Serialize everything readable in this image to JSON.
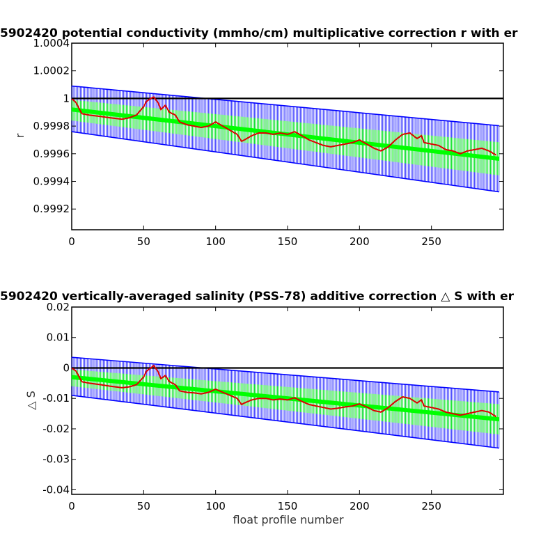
{
  "chart_data": [
    {
      "type": "line",
      "title": "5902420 potential conductivity (mmho/cm) multiplicative correction r with er",
      "xlabel": "",
      "ylabel": "r",
      "xlim": [
        0,
        300
      ],
      "ylim": [
        0.99905,
        1.0004
      ],
      "xticks": [
        0,
        50,
        100,
        150,
        200,
        250
      ],
      "yticks": [
        0.9992,
        0.9994,
        0.9996,
        0.9998,
        1,
        1.0002,
        1.0004
      ],
      "ytick_labels": [
        "0.9992",
        "0.9994",
        "0.9996",
        "0.9998",
        "1",
        "1.0002",
        "1.0004"
      ],
      "reference_line": 1,
      "colors": {
        "reference": "#000000",
        "blue_band": "#0000ff",
        "green_band": "#00ff00",
        "correction": "#dd0000"
      },
      "series": [
        {
          "role": "blue-error-band",
          "x": [
            0,
            300
          ],
          "upper": [
            1.00009,
            0.9998
          ],
          "lower": [
            0.99976,
            0.99932
          ]
        },
        {
          "role": "green-error-band",
          "x": [
            0,
            300
          ],
          "upper": [
            0.99999,
            0.99968
          ],
          "lower": [
            0.99984,
            0.99944
          ]
        },
        {
          "role": "green-fit",
          "x": [
            0,
            300
          ],
          "y": [
            0.99992,
            0.99956
          ]
        },
        {
          "role": "red-correction",
          "x": [
            0,
            3,
            7,
            12,
            20,
            27,
            35,
            40,
            45,
            50,
            52,
            55,
            57,
            60,
            62,
            65,
            68,
            72,
            75,
            80,
            85,
            90,
            95,
            100,
            105,
            110,
            115,
            118,
            120,
            125,
            130,
            135,
            140,
            145,
            150,
            155,
            160,
            165,
            170,
            175,
            180,
            185,
            190,
            195,
            200,
            205,
            210,
            215,
            220,
            225,
            230,
            235,
            240,
            243,
            245,
            250,
            255,
            260,
            265,
            270,
            275,
            280,
            285,
            290,
            295
          ],
          "y": [
            1.0,
            0.99997,
            0.99989,
            0.99988,
            0.99987,
            0.99986,
            0.99985,
            0.99986,
            0.99988,
            0.99994,
            0.99998,
            1.0,
            1.00001,
            0.99997,
            0.99992,
            0.99995,
            0.9999,
            0.99988,
            0.99983,
            0.99981,
            0.9998,
            0.99979,
            0.9998,
            0.99983,
            0.9998,
            0.99977,
            0.99974,
            0.99969,
            0.9997,
            0.99973,
            0.99975,
            0.99975,
            0.99974,
            0.99975,
            0.99974,
            0.99976,
            0.99973,
            0.9997,
            0.99968,
            0.99966,
            0.99965,
            0.99966,
            0.99967,
            0.99968,
            0.9997,
            0.99967,
            0.99964,
            0.99962,
            0.99965,
            0.9997,
            0.99974,
            0.99975,
            0.99971,
            0.99973,
            0.99968,
            0.99967,
            0.99966,
            0.99963,
            0.99962,
            0.9996,
            0.99962,
            0.99963,
            0.99964,
            0.99962,
            0.99959
          ]
        }
      ]
    },
    {
      "type": "line",
      "title": "5902420 vertically-averaged salinity (PSS-78) additive correction △ S with er",
      "xlabel": "float profile number",
      "ylabel": "△ S",
      "xlim": [
        0,
        300
      ],
      "ylim": [
        -0.0415,
        0.02
      ],
      "xticks": [
        0,
        50,
        100,
        150,
        200,
        250
      ],
      "yticks": [
        -0.04,
        -0.03,
        -0.02,
        -0.01,
        0,
        0.01,
        0.02
      ],
      "ytick_labels": [
        "-0.04",
        "-0.03",
        "-0.02",
        "-0.01",
        "0",
        "0.01",
        "0.02"
      ],
      "reference_line": 0,
      "colors": {
        "reference": "#000000",
        "blue_band": "#0000ff",
        "green_band": "#00ff00",
        "correction": "#dd0000"
      },
      "series": [
        {
          "role": "blue-error-band",
          "x": [
            0,
            300
          ],
          "upper": [
            0.0035,
            -0.008
          ],
          "lower": [
            -0.009,
            -0.0265
          ]
        },
        {
          "role": "green-error-band",
          "x": [
            0,
            300
          ],
          "upper": [
            -0.0005,
            -0.012
          ],
          "lower": [
            -0.006,
            -0.022
          ]
        },
        {
          "role": "green-fit",
          "x": [
            0,
            300
          ],
          "y": [
            -0.003,
            -0.017
          ]
        },
        {
          "role": "red-correction",
          "x": [
            0,
            3,
            7,
            12,
            20,
            27,
            35,
            40,
            45,
            50,
            52,
            55,
            57,
            60,
            62,
            65,
            68,
            72,
            75,
            80,
            85,
            90,
            95,
            100,
            105,
            110,
            115,
            118,
            120,
            125,
            130,
            135,
            140,
            145,
            150,
            155,
            160,
            165,
            170,
            175,
            180,
            185,
            190,
            195,
            200,
            205,
            210,
            215,
            220,
            225,
            230,
            235,
            240,
            243,
            245,
            250,
            255,
            260,
            265,
            270,
            275,
            280,
            285,
            290,
            295
          ],
          "y": [
            0.0,
            -0.001,
            -0.0045,
            -0.005,
            -0.0055,
            -0.006,
            -0.0065,
            -0.0062,
            -0.0055,
            -0.003,
            -0.001,
            0.0,
            0.0008,
            -0.0012,
            -0.0035,
            -0.0025,
            -0.0045,
            -0.0055,
            -0.0075,
            -0.008,
            -0.0082,
            -0.0085,
            -0.008,
            -0.007,
            -0.008,
            -0.009,
            -0.01,
            -0.012,
            -0.0115,
            -0.0105,
            -0.01,
            -0.01,
            -0.0105,
            -0.0102,
            -0.0105,
            -0.0098,
            -0.011,
            -0.012,
            -0.0125,
            -0.013,
            -0.0135,
            -0.0132,
            -0.0128,
            -0.0125,
            -0.0118,
            -0.0128,
            -0.014,
            -0.0145,
            -0.013,
            -0.011,
            -0.0095,
            -0.01,
            -0.0115,
            -0.0105,
            -0.0125,
            -0.013,
            -0.0135,
            -0.0145,
            -0.015,
            -0.0155,
            -0.015,
            -0.0145,
            -0.014,
            -0.0145,
            -0.016
          ]
        }
      ]
    }
  ]
}
